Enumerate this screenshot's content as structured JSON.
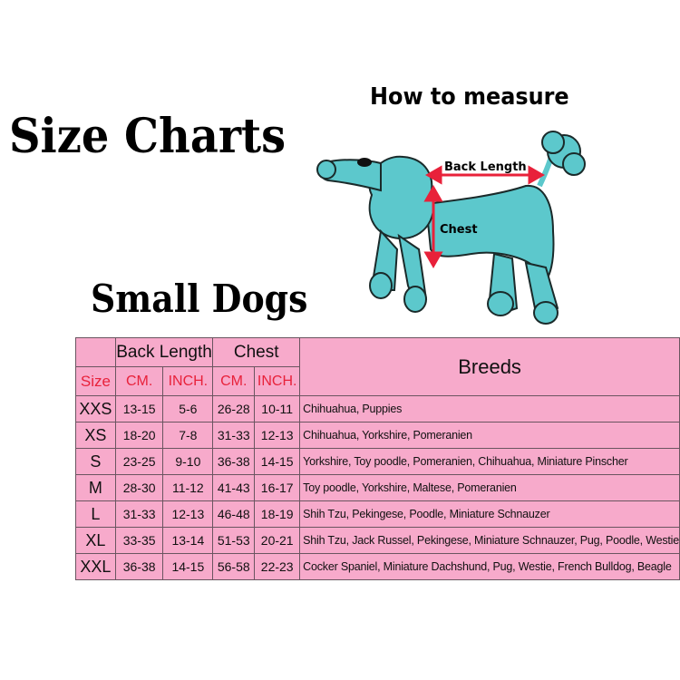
{
  "title": "Size Charts",
  "subtitle": "Small Dogs",
  "measure": {
    "title": "How to measure",
    "back_length_label": "Back Length",
    "chest_label": "Chest"
  },
  "colors": {
    "table_fill": "#f7aacb",
    "unit_text": "#e8213a",
    "dog_fill": "#5cc8cc",
    "arrow": "#e8213a"
  },
  "table": {
    "group_headers": {
      "back_length": "Back Length",
      "chest": "Chest",
      "breeds": "Breeds"
    },
    "sub_headers": {
      "size": "Size",
      "bl_cm": "CM.",
      "bl_inch": "INCH.",
      "ch_cm": "CM.",
      "ch_inch": "INCH."
    },
    "rows": [
      {
        "size": "XXS",
        "bl_cm": "13-15",
        "bl_inch": "5-6",
        "ch_cm": "26-28",
        "ch_inch": "10-11",
        "breeds": "Chihuahua, Puppies"
      },
      {
        "size": "XS",
        "bl_cm": "18-20",
        "bl_inch": "7-8",
        "ch_cm": "31-33",
        "ch_inch": "12-13",
        "breeds": "Chihuahua, Yorkshire, Pomeranien"
      },
      {
        "size": "S",
        "bl_cm": "23-25",
        "bl_inch": "9-10",
        "ch_cm": "36-38",
        "ch_inch": "14-15",
        "breeds": "Yorkshire, Toy poodle, Pomeranien, Chihuahua, Miniature Pinscher"
      },
      {
        "size": "M",
        "bl_cm": "28-30",
        "bl_inch": "11-12",
        "ch_cm": "41-43",
        "ch_inch": "16-17",
        "breeds": "Toy poodle, Yorkshire, Maltese, Pomeranien"
      },
      {
        "size": "L",
        "bl_cm": "31-33",
        "bl_inch": "12-13",
        "ch_cm": "46-48",
        "ch_inch": "18-19",
        "breeds": "Shih Tzu, Pekingese, Poodle, Miniature Schnauzer"
      },
      {
        "size": "XL",
        "bl_cm": "33-35",
        "bl_inch": "13-14",
        "ch_cm": "51-53",
        "ch_inch": "20-21",
        "breeds": "Shih Tzu, Jack Russel, Pekingese, Miniature Schnauzer, Pug, Poodle, Westie"
      },
      {
        "size": "XXL",
        "bl_cm": "36-38",
        "bl_inch": "14-15",
        "ch_cm": "56-58",
        "ch_inch": "22-23",
        "breeds": "Cocker Spaniel, Miniature Dachshund, Pug, Westie, French Bulldog, Beagle"
      }
    ]
  }
}
